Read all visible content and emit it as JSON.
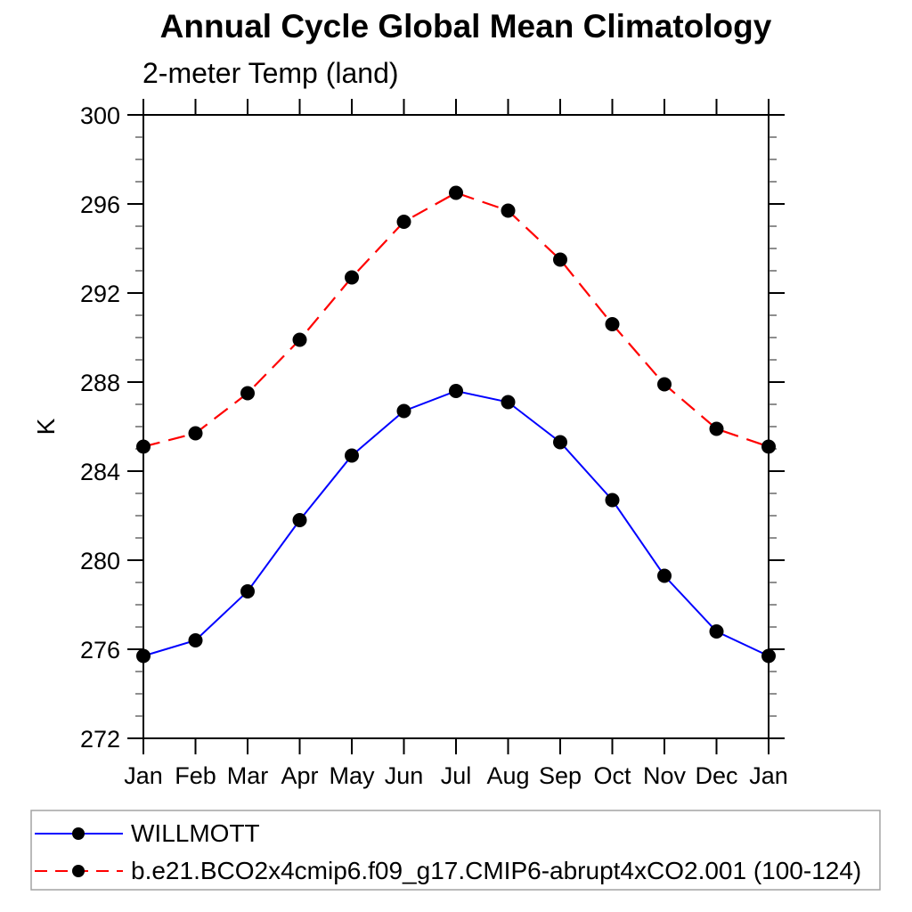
{
  "chart_data": {
    "type": "line",
    "title": "Annual Cycle Global Mean Climatology",
    "subtitle": "2-meter Temp (land)",
    "ylabel": "K",
    "xlabel": "",
    "x_categories": [
      "Jan",
      "Feb",
      "Mar",
      "Apr",
      "May",
      "Jun",
      "Jul",
      "Aug",
      "Sep",
      "Oct",
      "Nov",
      "Dec",
      "Jan"
    ],
    "ylim": [
      272,
      300
    ],
    "y_major_step": 4,
    "y_minor_step": 1,
    "y_tick_labels": [
      "272",
      "276",
      "280",
      "284",
      "288",
      "292",
      "296",
      "300"
    ],
    "grid": false,
    "legend_position": "bottom-left",
    "marker": "filled-circle",
    "marker_color": "#000000",
    "series": [
      {
        "name": "WILLMOTT",
        "color": "#0000ff",
        "line_style": "solid",
        "values": [
          275.7,
          276.4,
          278.6,
          281.8,
          284.7,
          286.7,
          287.6,
          287.1,
          285.3,
          282.7,
          279.3,
          276.8,
          275.7
        ]
      },
      {
        "name": "b.e21.BCO2x4cmip6.f09_g17.CMIP6-abrupt4xCO2.001 (100-124)",
        "color": "#ff0000",
        "line_style": "dashed",
        "values": [
          285.1,
          285.7,
          287.5,
          289.9,
          292.7,
          295.2,
          296.5,
          295.7,
          293.5,
          290.6,
          287.9,
          285.9,
          285.1
        ]
      }
    ]
  }
}
